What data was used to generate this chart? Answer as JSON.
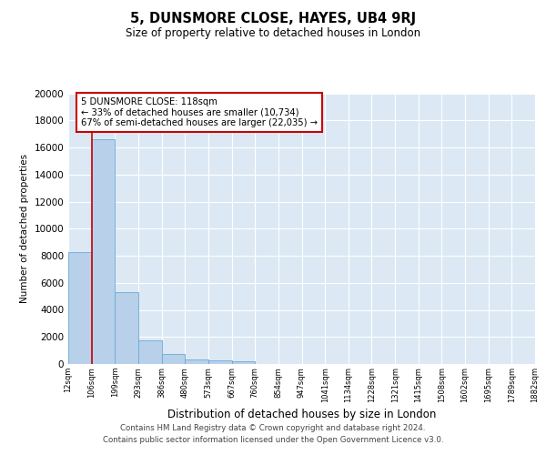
{
  "title": "5, DUNSMORE CLOSE, HAYES, UB4 9RJ",
  "subtitle": "Size of property relative to detached houses in London",
  "xlabel": "Distribution of detached houses by size in London",
  "ylabel": "Number of detached properties",
  "annotation_line1": "5 DUNSMORE CLOSE: 118sqm",
  "annotation_line2": "← 33% of detached houses are smaller (10,734)",
  "annotation_line3": "67% of semi-detached houses are larger (22,035) →",
  "bin_labels": [
    "12sqm",
    "106sqm",
    "199sqm",
    "293sqm",
    "386sqm",
    "480sqm",
    "573sqm",
    "667sqm",
    "760sqm",
    "854sqm",
    "947sqm",
    "1041sqm",
    "1134sqm",
    "1228sqm",
    "1321sqm",
    "1415sqm",
    "1508sqm",
    "1602sqm",
    "1695sqm",
    "1789sqm",
    "1882sqm"
  ],
  "bar_values": [
    8250,
    16600,
    5300,
    1750,
    750,
    350,
    250,
    200,
    0,
    0,
    0,
    0,
    0,
    0,
    0,
    0,
    0,
    0,
    0,
    0
  ],
  "bar_color": "#b8d0ea",
  "bar_edge_color": "#6aaad4",
  "vline_color": "#cc0000",
  "annotation_box_edgecolor": "#cc0000",
  "grid_color": "#ffffff",
  "background_color": "#dce9f5",
  "ylim": [
    0,
    20000
  ],
  "yticks": [
    0,
    2000,
    4000,
    6000,
    8000,
    10000,
    12000,
    14000,
    16000,
    18000,
    20000
  ],
  "footer_line1": "Contains HM Land Registry data © Crown copyright and database right 2024.",
  "footer_line2": "Contains public sector information licensed under the Open Government Licence v3.0."
}
